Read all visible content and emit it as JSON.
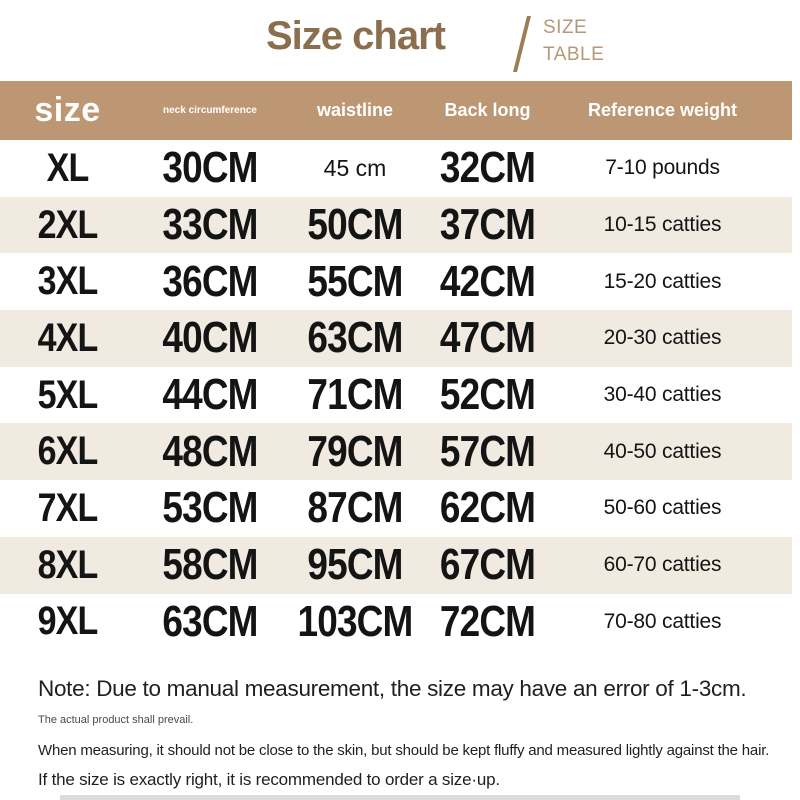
{
  "title": {
    "main": "Size chart",
    "side_line1": "SIZE",
    "side_line2": "TABLE"
  },
  "colors": {
    "header_bar": "#bd9774",
    "stripe_row": "#f0eae1",
    "title_brown": "#8a6e4d",
    "subtitle_tan": "#b39a76",
    "text_dark": "#141414"
  },
  "chart_data": {
    "type": "table",
    "title": "Size chart",
    "headers": [
      "size",
      "neck circumference",
      "waistline",
      "Back long",
      "Reference weight"
    ],
    "rows": [
      [
        "XL",
        "30CM",
        "45 cm",
        "32CM",
        "7-10 pounds"
      ],
      [
        "2XL",
        "33CM",
        "50CM",
        "37CM",
        "10-15 catties"
      ],
      [
        "3XL",
        "36CM",
        "55CM",
        "42CM",
        "15-20 catties"
      ],
      [
        "4XL",
        "40CM",
        "63CM",
        "47CM",
        "20-30 catties"
      ],
      [
        "5XL",
        "44CM",
        "71CM",
        "52CM",
        "30-40 catties"
      ],
      [
        "6XL",
        "48CM",
        "79CM",
        "57CM",
        "40-50 catties"
      ],
      [
        "7XL",
        "53CM",
        "87CM",
        "62CM",
        "50-60 catties"
      ],
      [
        "8XL",
        "58CM",
        "95CM",
        "67CM",
        "60-70 catties"
      ],
      [
        "9XL",
        "63CM",
        "103CM",
        "72CM",
        "70-80 catties"
      ]
    ],
    "layout": {
      "stripe_rows": "even rows (2XL, 4XL, 6XL, 8XL) shaded beige",
      "grid": "off"
    }
  },
  "notes": {
    "main": "Note: Due to manual measurement, the size may have an error of 1-3cm.",
    "small": "The actual product shall prevail.",
    "line2": "When measuring, it should not be close to the skin, but should be kept fluffy and measured lightly against the hair.",
    "line3": "If the size is exactly right, it is recommended to order a size·up."
  }
}
